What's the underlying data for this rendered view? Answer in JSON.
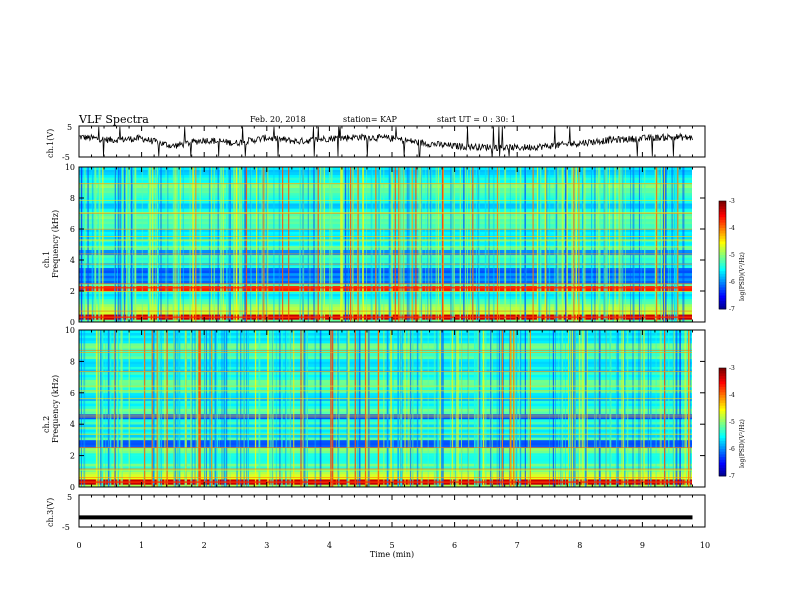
{
  "header": {
    "title": "VLF Spectra",
    "date": "Feb. 20, 2018",
    "station": "station= KAP",
    "start_ut": "start  UT  =   0 : 30: 1"
  },
  "chart_data": [
    {
      "type": "line",
      "panel": "ch1-waveform",
      "ylabel": "ch.1(V)",
      "xlim": [
        0,
        10
      ],
      "ylim": [
        -5,
        5
      ],
      "yticks": [
        "5",
        "-5"
      ],
      "x": [
        0,
        0.5,
        1.0,
        1.5,
        2.0,
        2.5,
        3.0,
        3.5,
        4.0,
        4.5,
        5.0,
        5.5,
        6.0,
        6.5,
        7.0,
        7.5,
        8.0,
        8.5,
        9.0,
        9.5,
        9.8
      ],
      "y": [
        1.5,
        0.5,
        1.0,
        -1.5,
        0.5,
        -0.5,
        1.2,
        0.0,
        1.0,
        1.5,
        1.0,
        -0.5,
        -1.5,
        -1.8,
        -2.0,
        -1.5,
        -0.5,
        0.5,
        1.0,
        1.5,
        1.2
      ],
      "color": "#000000"
    },
    {
      "type": "heatmap",
      "panel": "ch1-spectrogram",
      "ylabel": "ch.1\nFrequency  (kHz)",
      "xlim": [
        0,
        10
      ],
      "ylim": [
        0,
        10
      ],
      "yticks": [
        "0",
        "2",
        "4",
        "6",
        "8",
        "10"
      ],
      "colorbar": {
        "label": "log(PSD)(V²/Hz)",
        "range": [
          -7,
          -3
        ],
        "ticks": [
          "-3",
          "-4",
          "-5",
          "-6",
          "-7"
        ]
      },
      "strong_bands_khz": [
        0.3,
        2.2
      ],
      "dark_bands_khz": [
        2.8,
        3.2,
        4.5
      ]
    },
    {
      "type": "heatmap",
      "panel": "ch2-spectrogram",
      "ylabel": "ch.2\nFrequency  (kHz)",
      "xlim": [
        0,
        10
      ],
      "ylim": [
        0,
        10
      ],
      "yticks": [
        "0",
        "2",
        "4",
        "6",
        "8",
        "10"
      ],
      "colorbar": {
        "label": "log(PSD)(V²/Hz)",
        "range": [
          -7,
          -3
        ],
        "ticks": [
          "-3",
          "-4",
          "-5",
          "-6",
          "-7"
        ]
      },
      "strong_bands_khz": [
        0.3
      ],
      "dark_bands_khz": [
        2.8,
        4.5
      ]
    },
    {
      "type": "line",
      "panel": "ch3-waveform",
      "ylabel": "ch.3(V)",
      "xlim": [
        0,
        10
      ],
      "ylim": [
        -5,
        5
      ],
      "yticks": [
        "5",
        "-5"
      ],
      "x": [
        0,
        9.8
      ],
      "y": [
        -2.0,
        -2.0
      ],
      "color": "#000000"
    }
  ],
  "xaxis": {
    "label": "Time  (min)",
    "ticks": [
      "0",
      "1",
      "2",
      "3",
      "4",
      "5",
      "6",
      "7",
      "8",
      "9",
      "10"
    ]
  }
}
